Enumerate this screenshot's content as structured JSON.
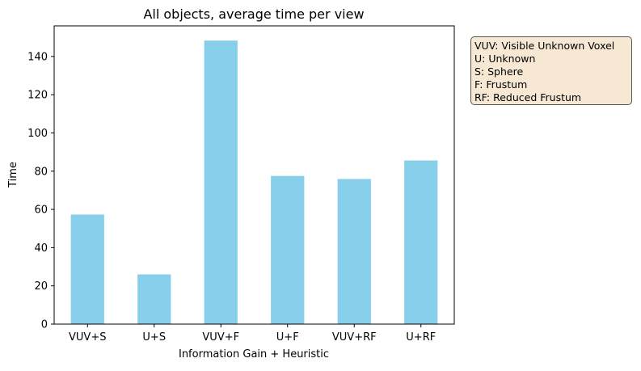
{
  "chart_data": {
    "type": "bar",
    "title": "All objects, average time per view",
    "xlabel": "Information Gain + Heuristic",
    "ylabel": "Time",
    "categories": [
      "VUV+S",
      "U+S",
      "VUV+F",
      "U+F",
      "VUV+RF",
      "U+RF"
    ],
    "values": [
      57.3,
      26.0,
      148.3,
      77.5,
      75.9,
      85.6
    ],
    "ylim": [
      0,
      156
    ],
    "yticks": [
      0,
      20,
      40,
      60,
      80,
      100,
      120,
      140
    ],
    "grid": false,
    "legend_placement": "outside-right",
    "legend_lines": [
      "VUV: Visible Unknown Voxel",
      "U: Unknown",
      "S: Sphere",
      "F: Frustum",
      "RF: Reduced Frustum"
    ],
    "colors": {
      "bar": "#87ceeb",
      "legend_bg": "#f6e8d3",
      "legend_border": "#555555",
      "axis": "#000000"
    }
  }
}
